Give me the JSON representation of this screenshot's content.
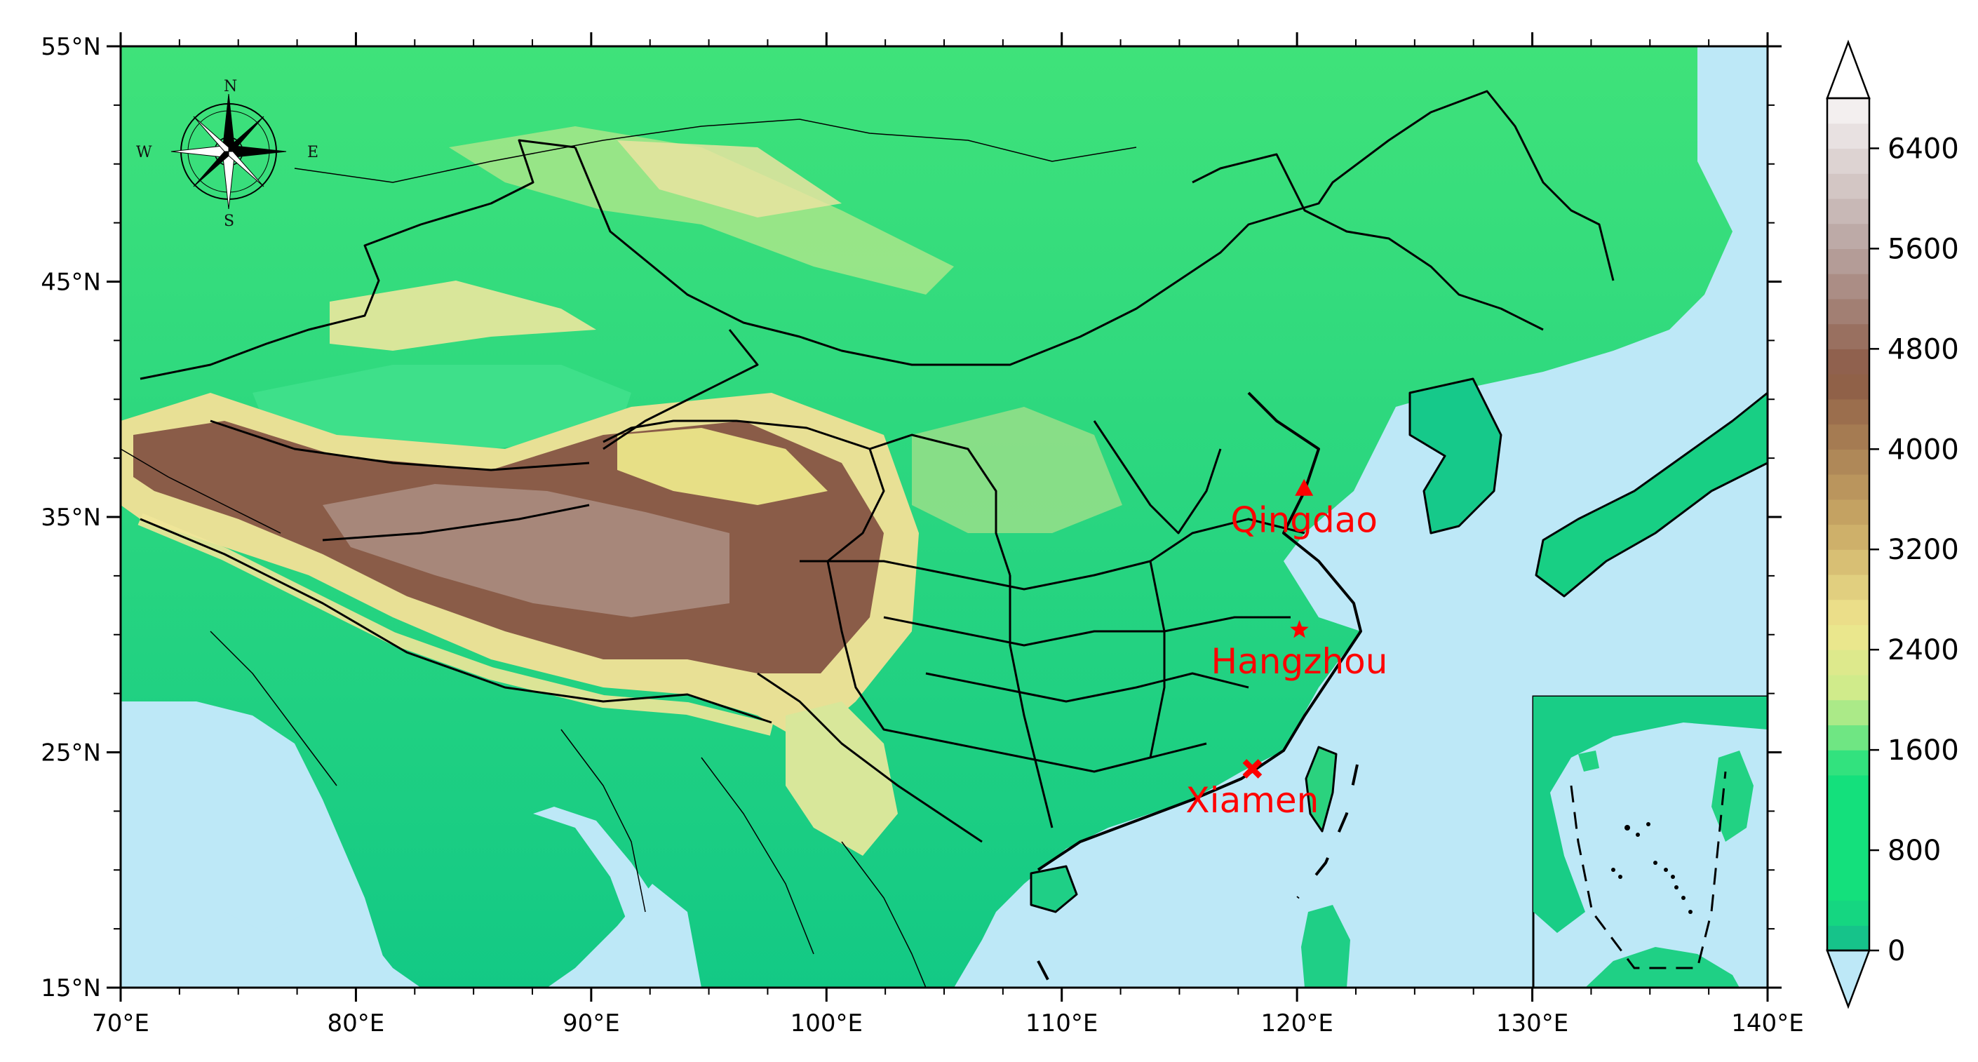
{
  "map": {
    "extent": {
      "lon": [
        70,
        140
      ],
      "lat": [
        15,
        55
      ]
    },
    "lon_ticks": [
      70,
      80,
      90,
      100,
      110,
      120,
      130,
      140
    ],
    "lon_tick_labels": [
      "70°E",
      "80°E",
      "90°E",
      "100°E",
      "110°E",
      "120°E",
      "130°E",
      "140°E"
    ],
    "lat_ticks": [
      15,
      25,
      35,
      45,
      55
    ],
    "lat_tick_labels": [
      "15°N",
      "25°N",
      "35°N",
      "45°N",
      "55°N"
    ],
    "ocean_color": "#bde8f7",
    "border_color": "#000000"
  },
  "cities": [
    {
      "name": "Qingdao",
      "lon": 120.3,
      "lat": 36.2,
      "marker": "triangle",
      "color": "#ff0000"
    },
    {
      "name": "Hangzhou",
      "lon": 120.1,
      "lat": 30.2,
      "marker": "star",
      "color": "#ff0000"
    },
    {
      "name": "Xiamen",
      "lon": 118.1,
      "lat": 24.3,
      "marker": "cross",
      "color": "#ff0000"
    }
  ],
  "compass": {
    "n": "N",
    "s": "S",
    "e": "E",
    "w": "W"
  },
  "colorbar": {
    "tick_values": [
      0,
      800,
      1600,
      2400,
      3200,
      4000,
      4800,
      5600,
      6400
    ],
    "tick_labels": [
      "0",
      "800",
      "1600",
      "2400",
      "3200",
      "4000",
      "4800",
      "5600",
      "6400"
    ],
    "min": 0,
    "max": 6800,
    "step": 200,
    "colors": {
      "ocean": "#bde8f7",
      "low": "#17b98f",
      "green": "#14e07c",
      "yellowgreen": "#c9ec8a",
      "yellow": "#f0e68e",
      "tan": "#c9a865",
      "brown": "#8b5a45",
      "mauve": "#b8a3a0",
      "white": "#f8f6f6"
    }
  }
}
